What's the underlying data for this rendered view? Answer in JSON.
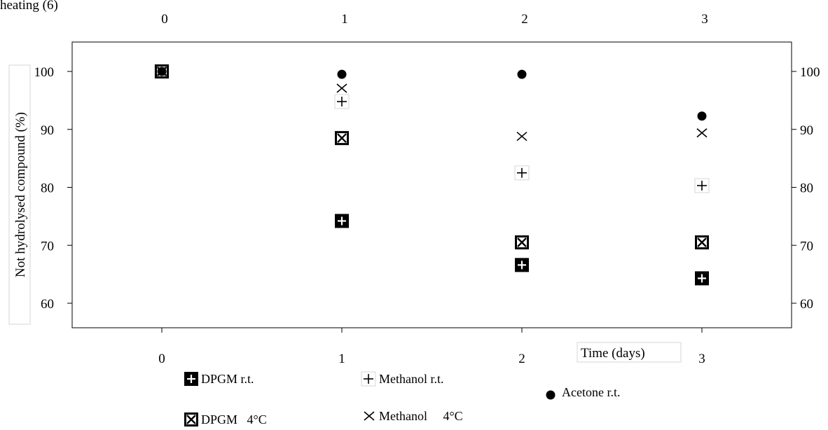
{
  "figure": {
    "corner_caption": "heating (6)"
  },
  "chart_data": {
    "type": "scatter",
    "x": [
      0,
      1,
      2,
      3
    ],
    "xlim": [
      -0.5,
      3.5
    ],
    "ylim": [
      55,
      105
    ],
    "y_ticks": [
      60,
      70,
      80,
      90,
      100
    ],
    "x_ticks": [
      0,
      1,
      2,
      3
    ],
    "xlabel": "Time (days)",
    "ylabel": "Not hydrolysed compound (%)",
    "title": "",
    "grid": false,
    "top_axis_ticks": true,
    "right_axis_ticks": true,
    "legend_placement": "bottom",
    "series": [
      {
        "name": "DPGM r.t.",
        "marker": "boxed-plus",
        "values": [
          100,
          74.2,
          66.6,
          64.3
        ]
      },
      {
        "name": "DPGM   4°C",
        "marker": "boxed-x",
        "values": [
          100,
          88.5,
          70.5,
          70.5
        ]
      },
      {
        "name": "Methanol r.t.",
        "marker": "plus",
        "values": [
          100,
          94.8,
          82.5,
          80.3
        ]
      },
      {
        "name": "Methanol     4°C",
        "marker": "x",
        "values": [
          100,
          97.1,
          88.8,
          89.4
        ]
      },
      {
        "name": "Acetone r.t.",
        "marker": "dot",
        "values": [
          100,
          99.5,
          99.5,
          92.3
        ]
      }
    ]
  },
  "colors": {
    "marker": "#000000",
    "background": "#ffffff",
    "frame": "#000000"
  }
}
